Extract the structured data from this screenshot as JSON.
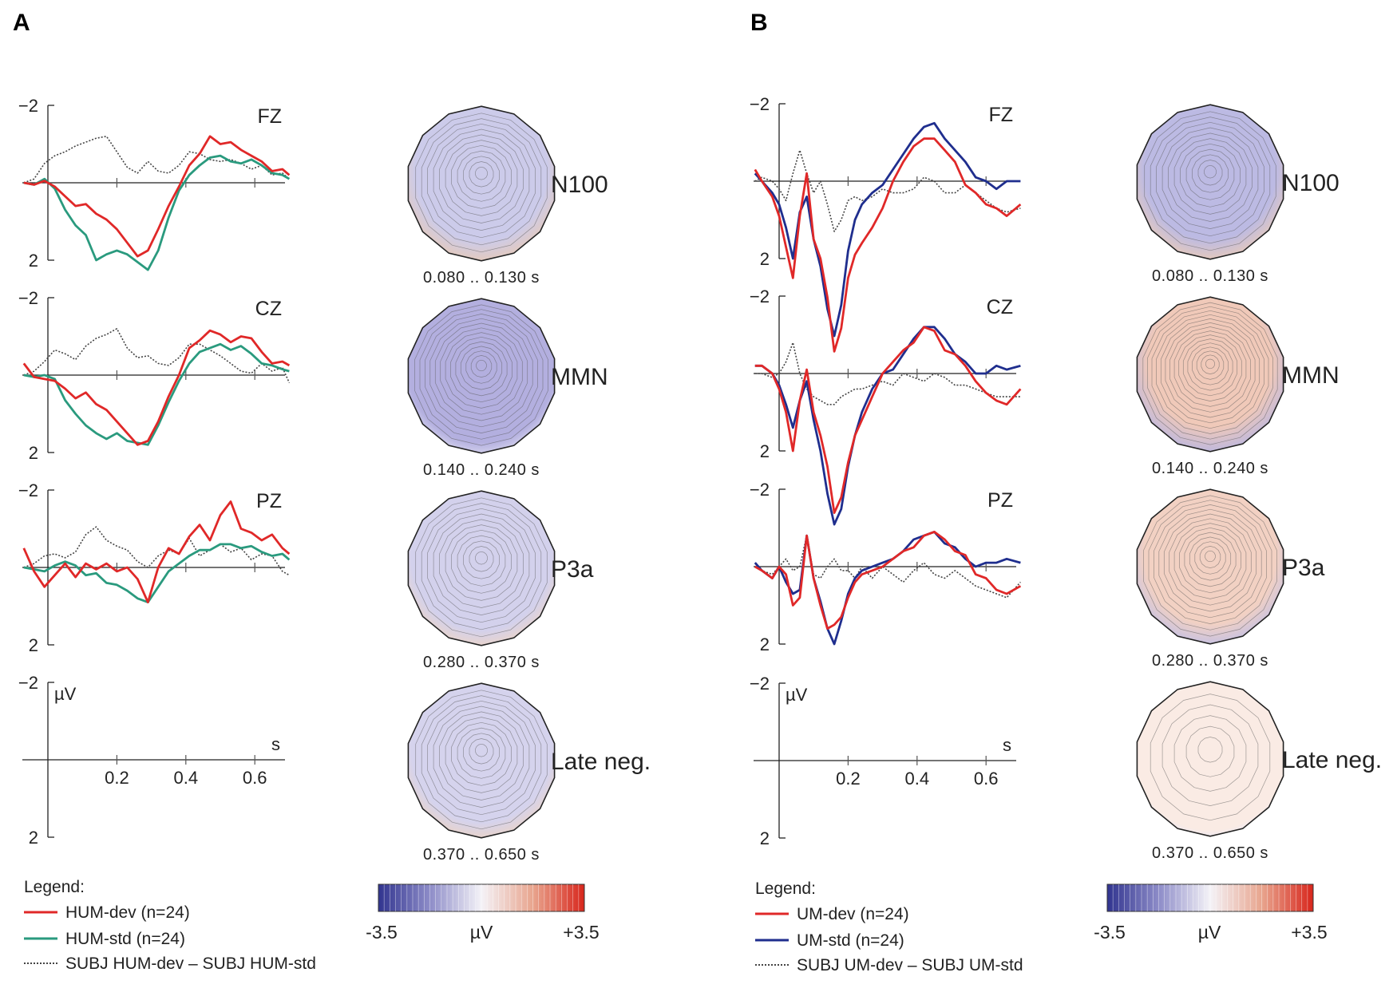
{
  "chart_data": [
    {
      "panel": "A",
      "type": "line",
      "title": "",
      "xlabel": "s",
      "ylabel": "µV",
      "xlim": [
        -0.07,
        0.7
      ],
      "ylim": [
        -2,
        2
      ],
      "y_inverted": true,
      "x_ticks": [
        "0.2",
        "0.4",
        "0.6"
      ],
      "y_ticks": [
        "-2",
        "2"
      ],
      "unit_x": "s",
      "unit_y": "µV",
      "legend_title": "Legend:",
      "series": [
        {
          "name": "HUM-dev (n=24)",
          "color": "#e02828",
          "style": "solid"
        },
        {
          "name": "HUM-std (n=24)",
          "color": "#2a9a7e",
          "style": "solid"
        },
        {
          "name": "SUBJ HUM-dev – SUBJ HUM-std",
          "color": "#444444",
          "style": "dotted"
        }
      ],
      "channels": [
        {
          "label": "FZ",
          "x": [
            -0.07,
            -0.04,
            -0.01,
            0.02,
            0.05,
            0.08,
            0.11,
            0.14,
            0.17,
            0.2,
            0.23,
            0.26,
            0.29,
            0.32,
            0.35,
            0.38,
            0.41,
            0.44,
            0.47,
            0.5,
            0.53,
            0.56,
            0.59,
            0.62,
            0.65,
            0.68,
            0.7
          ],
          "series": [
            [
              0,
              0.05,
              -0.05,
              0.1,
              0.35,
              0.6,
              0.55,
              0.8,
              0.95,
              1.2,
              1.55,
              1.9,
              1.75,
              1.2,
              0.6,
              0.1,
              -0.45,
              -0.75,
              -1.2,
              -1.0,
              -1.05,
              -0.85,
              -0.7,
              -0.55,
              -0.3,
              -0.35,
              -0.2
            ],
            [
              0,
              0.05,
              -0.1,
              0.15,
              0.7,
              1.1,
              1.35,
              2.0,
              1.85,
              1.75,
              1.85,
              2.05,
              2.25,
              1.75,
              0.9,
              0.2,
              -0.2,
              -0.45,
              -0.65,
              -0.7,
              -0.55,
              -0.5,
              -0.6,
              -0.45,
              -0.25,
              -0.2,
              -0.1
            ],
            [
              0,
              -0.1,
              -0.5,
              -0.7,
              -0.8,
              -0.95,
              -1.05,
              -1.15,
              -1.2,
              -0.8,
              -0.4,
              -0.25,
              -0.55,
              -0.3,
              -0.25,
              -0.45,
              -0.8,
              -0.75,
              -0.6,
              -0.55,
              -0.6,
              -0.5,
              -0.35,
              -0.45,
              -0.2,
              -0.25,
              -0.1
            ]
          ]
        },
        {
          "label": "CZ",
          "x": [
            -0.07,
            -0.04,
            -0.01,
            0.02,
            0.05,
            0.08,
            0.11,
            0.14,
            0.17,
            0.2,
            0.23,
            0.26,
            0.29,
            0.32,
            0.35,
            0.38,
            0.41,
            0.44,
            0.47,
            0.5,
            0.53,
            0.56,
            0.59,
            0.62,
            0.65,
            0.68,
            0.7
          ],
          "series": [
            [
              -0.3,
              0.05,
              0.1,
              0.15,
              0.35,
              0.6,
              0.45,
              0.75,
              0.9,
              1.2,
              1.5,
              1.8,
              1.7,
              1.2,
              0.55,
              0.0,
              -0.7,
              -0.9,
              -1.15,
              -1.05,
              -0.85,
              -1.0,
              -0.95,
              -0.6,
              -0.3,
              -0.35,
              -0.25
            ],
            [
              0,
              0.05,
              0.0,
              0.1,
              0.65,
              1.0,
              1.3,
              1.5,
              1.65,
              1.5,
              1.7,
              1.75,
              1.8,
              1.3,
              0.7,
              0.15,
              -0.3,
              -0.6,
              -0.7,
              -0.8,
              -0.65,
              -0.75,
              -0.55,
              -0.3,
              -0.25,
              -0.15,
              -0.1
            ],
            [
              0,
              -0.1,
              -0.35,
              -0.65,
              -0.55,
              -0.4,
              -0.75,
              -0.95,
              -1.05,
              -1.2,
              -0.7,
              -0.45,
              -0.5,
              -0.3,
              -0.25,
              -0.45,
              -0.8,
              -0.8,
              -0.65,
              -0.5,
              -0.3,
              -0.1,
              -0.05,
              -0.3,
              -0.1,
              -0.2,
              0.2
            ]
          ]
        },
        {
          "label": "PZ",
          "x": [
            -0.07,
            -0.04,
            -0.01,
            0.02,
            0.05,
            0.08,
            0.11,
            0.14,
            0.17,
            0.2,
            0.23,
            0.26,
            0.29,
            0.32,
            0.35,
            0.38,
            0.41,
            0.44,
            0.47,
            0.5,
            0.53,
            0.56,
            0.59,
            0.62,
            0.65,
            0.68,
            0.7
          ],
          "series": [
            [
              -0.5,
              0.1,
              0.5,
              0.2,
              -0.1,
              0.25,
              -0.1,
              0.05,
              -0.1,
              0.1,
              0.0,
              0.3,
              0.9,
              0.0,
              -0.5,
              -0.35,
              -0.8,
              -1.1,
              -0.7,
              -1.35,
              -1.7,
              -1.0,
              -0.9,
              -0.7,
              -0.85,
              -0.5,
              -0.35
            ],
            [
              0.0,
              0.05,
              0.1,
              -0.05,
              -0.15,
              -0.05,
              0.2,
              0.15,
              0.4,
              0.45,
              0.6,
              0.8,
              0.9,
              0.5,
              0.1,
              -0.1,
              -0.3,
              -0.45,
              -0.45,
              -0.6,
              -0.6,
              -0.5,
              -0.55,
              -0.4,
              -0.3,
              -0.35,
              -0.2
            ],
            [
              0,
              -0.1,
              -0.3,
              -0.35,
              -0.25,
              -0.4,
              -0.85,
              -1.05,
              -0.7,
              -0.55,
              -0.45,
              -0.15,
              0.0,
              -0.3,
              -0.45,
              -0.35,
              -0.75,
              -0.3,
              -0.45,
              -0.6,
              -0.4,
              -0.5,
              -0.2,
              -0.35,
              -0.3,
              0.1,
              0.2
            ]
          ]
        },
        {
          "label": "",
          "x": [],
          "series": []
        }
      ],
      "topomaps": [
        {
          "label": "N100",
          "window": "0.080 .. 0.130 s",
          "contours": 12,
          "fill": "#cccbea",
          "edge": "#e6cab8",
          "inner": 0.45
        },
        {
          "label": "MMN",
          "window": "0.140 .. 0.240 s",
          "contours": 14,
          "fill": "#b3afdf",
          "edge": "#d8d6ee",
          "inner": 0.55
        },
        {
          "label": "P3a",
          "window": "0.280 .. 0.370 s",
          "contours": 12,
          "fill": "#d3d1ec",
          "edge": "#ebd4c8",
          "inner": 0.5
        },
        {
          "label": "Late neg.",
          "window": "0.370 .. 0.650 s",
          "contours": 12,
          "fill": "#d5d3ed",
          "edge": "#ead3c6",
          "inner": 0.5
        }
      ],
      "colorbar": {
        "min": "-3.5",
        "max": "+3.5",
        "unit": "µV",
        "colors": [
          "#31348f",
          "#8d8cc8",
          "#f4f2f7",
          "#e8a58e",
          "#d8261c"
        ]
      }
    },
    {
      "panel": "B",
      "type": "line",
      "title": "",
      "xlabel": "s",
      "ylabel": "µV",
      "xlim": [
        -0.07,
        0.7
      ],
      "ylim": [
        -2,
        2
      ],
      "y_inverted": true,
      "x_ticks": [
        "0.2",
        "0.4",
        "0.6"
      ],
      "y_ticks": [
        "-2",
        "2"
      ],
      "unit_x": "s",
      "unit_y": "µV",
      "legend_title": "Legend:",
      "series": [
        {
          "name": "UM-dev (n=24)",
          "color": "#e02828",
          "style": "solid"
        },
        {
          "name": "UM-std (n=24)",
          "color": "#1f2e8e",
          "style": "solid"
        },
        {
          "name": "SUBJ UM-dev – SUBJ UM-std",
          "color": "#444444",
          "style": "dotted"
        }
      ],
      "channels": [
        {
          "label": "FZ",
          "x": [
            -0.07,
            -0.05,
            -0.02,
            0.0,
            0.02,
            0.04,
            0.06,
            0.08,
            0.1,
            0.12,
            0.14,
            0.16,
            0.18,
            0.2,
            0.22,
            0.24,
            0.27,
            0.3,
            0.33,
            0.36,
            0.39,
            0.42,
            0.45,
            0.48,
            0.51,
            0.54,
            0.57,
            0.6,
            0.63,
            0.66,
            0.7
          ],
          "series": [
            [
              -0.3,
              0.0,
              0.4,
              0.9,
              1.7,
              2.5,
              0.9,
              -0.2,
              1.5,
              2.0,
              3.0,
              4.4,
              3.8,
              2.5,
              1.9,
              1.6,
              1.2,
              0.7,
              0.0,
              -0.5,
              -0.9,
              -1.1,
              -1.1,
              -0.8,
              -0.5,
              0.1,
              0.3,
              0.6,
              0.7,
              0.9,
              0.6
            ],
            [
              -0.2,
              0.0,
              0.3,
              0.6,
              1.2,
              2.0,
              0.8,
              0.4,
              1.5,
              2.2,
              3.3,
              4.0,
              3.2,
              1.8,
              1.0,
              0.6,
              0.3,
              0.1,
              -0.3,
              -0.7,
              -1.1,
              -1.4,
              -1.5,
              -1.1,
              -0.8,
              -0.5,
              -0.1,
              0.0,
              0.2,
              0.0,
              0.0
            ],
            [
              0,
              -0.1,
              0.0,
              0.2,
              0.5,
              -0.2,
              -0.8,
              -0.2,
              0.3,
              0.0,
              0.6,
              1.3,
              1.0,
              0.5,
              0.4,
              0.5,
              0.4,
              0.2,
              0.3,
              0.3,
              0.2,
              -0.1,
              0.0,
              0.3,
              0.3,
              0.1,
              0.3,
              0.5,
              0.7,
              0.8,
              0.7
            ]
          ]
        },
        {
          "label": "CZ",
          "x": [
            -0.07,
            -0.05,
            -0.02,
            0.0,
            0.02,
            0.04,
            0.06,
            0.08,
            0.1,
            0.12,
            0.14,
            0.16,
            0.18,
            0.2,
            0.22,
            0.24,
            0.27,
            0.3,
            0.33,
            0.36,
            0.39,
            0.42,
            0.45,
            0.48,
            0.51,
            0.54,
            0.57,
            0.6,
            0.63,
            0.66,
            0.7
          ],
          "series": [
            [
              -0.2,
              -0.2,
              0.0,
              0.4,
              1.0,
              2.0,
              0.7,
              -0.1,
              1.0,
              1.6,
              2.4,
              3.6,
              3.2,
              2.3,
              1.6,
              1.2,
              0.6,
              0.0,
              -0.3,
              -0.6,
              -0.8,
              -1.2,
              -1.1,
              -0.6,
              -0.5,
              -0.2,
              0.2,
              0.5,
              0.7,
              0.8,
              0.4
            ],
            [
              -0.2,
              -0.2,
              0.0,
              0.3,
              0.8,
              1.4,
              0.7,
              0.2,
              1.2,
              2.0,
              3.1,
              3.9,
              3.5,
              2.4,
              1.6,
              1.0,
              0.4,
              0.0,
              -0.1,
              -0.5,
              -0.9,
              -1.2,
              -1.2,
              -0.9,
              -0.5,
              -0.3,
              0.0,
              0.0,
              -0.2,
              -0.1,
              -0.2
            ],
            [
              0,
              0.0,
              0.1,
              0.0,
              -0.3,
              -0.8,
              0.0,
              0.4,
              0.6,
              0.7,
              0.8,
              0.8,
              0.6,
              0.5,
              0.4,
              0.4,
              0.3,
              0.2,
              0.3,
              0.0,
              0.1,
              0.2,
              0.0,
              0.1,
              0.3,
              0.3,
              0.4,
              0.5,
              0.6,
              0.6,
              0.6
            ]
          ]
        },
        {
          "label": "PZ",
          "x": [
            -0.07,
            -0.05,
            -0.02,
            0.0,
            0.02,
            0.04,
            0.06,
            0.08,
            0.1,
            0.12,
            0.14,
            0.16,
            0.18,
            0.2,
            0.22,
            0.24,
            0.27,
            0.3,
            0.33,
            0.36,
            0.39,
            0.42,
            0.45,
            0.48,
            0.51,
            0.54,
            0.57,
            0.6,
            0.63,
            0.66,
            0.7
          ],
          "series": [
            [
              0.0,
              0.1,
              0.3,
              0.0,
              0.2,
              1.0,
              0.8,
              -0.8,
              0.3,
              1.0,
              1.6,
              1.5,
              1.3,
              0.8,
              0.4,
              0.2,
              0.1,
              0.0,
              -0.2,
              -0.4,
              -0.5,
              -0.8,
              -0.9,
              -0.7,
              -0.4,
              -0.3,
              0.2,
              0.3,
              0.6,
              0.7,
              0.5
            ],
            [
              -0.1,
              0.1,
              0.3,
              0.0,
              0.4,
              0.7,
              0.6,
              -0.8,
              0.3,
              0.9,
              1.6,
              2.0,
              1.4,
              0.7,
              0.3,
              0.1,
              0.0,
              -0.1,
              -0.2,
              -0.4,
              -0.7,
              -0.8,
              -0.9,
              -0.6,
              -0.5,
              -0.2,
              0.0,
              -0.1,
              -0.1,
              -0.2,
              -0.1
            ],
            [
              0,
              0.1,
              0.2,
              0.0,
              -0.2,
              0.1,
              0.0,
              -0.8,
              0.2,
              0.3,
              0.0,
              -0.2,
              0.1,
              0.1,
              0.3,
              0.0,
              0.3,
              0.0,
              0.2,
              0.4,
              0.1,
              -0.1,
              0.2,
              0.3,
              0.1,
              0.3,
              0.5,
              0.6,
              0.7,
              0.8,
              0.4
            ]
          ]
        },
        {
          "label": "",
          "x": [],
          "series": []
        }
      ],
      "topomaps": [
        {
          "label": "N100",
          "window": "0.080 .. 0.130 s",
          "contours": 12,
          "fill": "#bcbae3",
          "edge": "#e8cab9",
          "inner": 0.45
        },
        {
          "label": "MMN",
          "window": "0.140 .. 0.240 s",
          "contours": 16,
          "fill": "#f0c9b9",
          "edge": "#b9b6e0",
          "inner": 0.4
        },
        {
          "label": "P3a",
          "window": "0.280 .. 0.370 s",
          "contours": 14,
          "fill": "#f2d1c3",
          "edge": "#c3c0e4",
          "inner": 0.45
        },
        {
          "label": "Late neg.",
          "window": "0.370 .. 0.650 s",
          "contours": 6,
          "fill": "#faebe4",
          "edge": "#ebe9f5",
          "inner": 0.6
        }
      ],
      "colorbar": {
        "min": "-3.5",
        "max": "+3.5",
        "unit": "µV",
        "colors": [
          "#31348f",
          "#8d8cc8",
          "#f4f2f7",
          "#e8a58e",
          "#d8261c"
        ]
      }
    }
  ]
}
